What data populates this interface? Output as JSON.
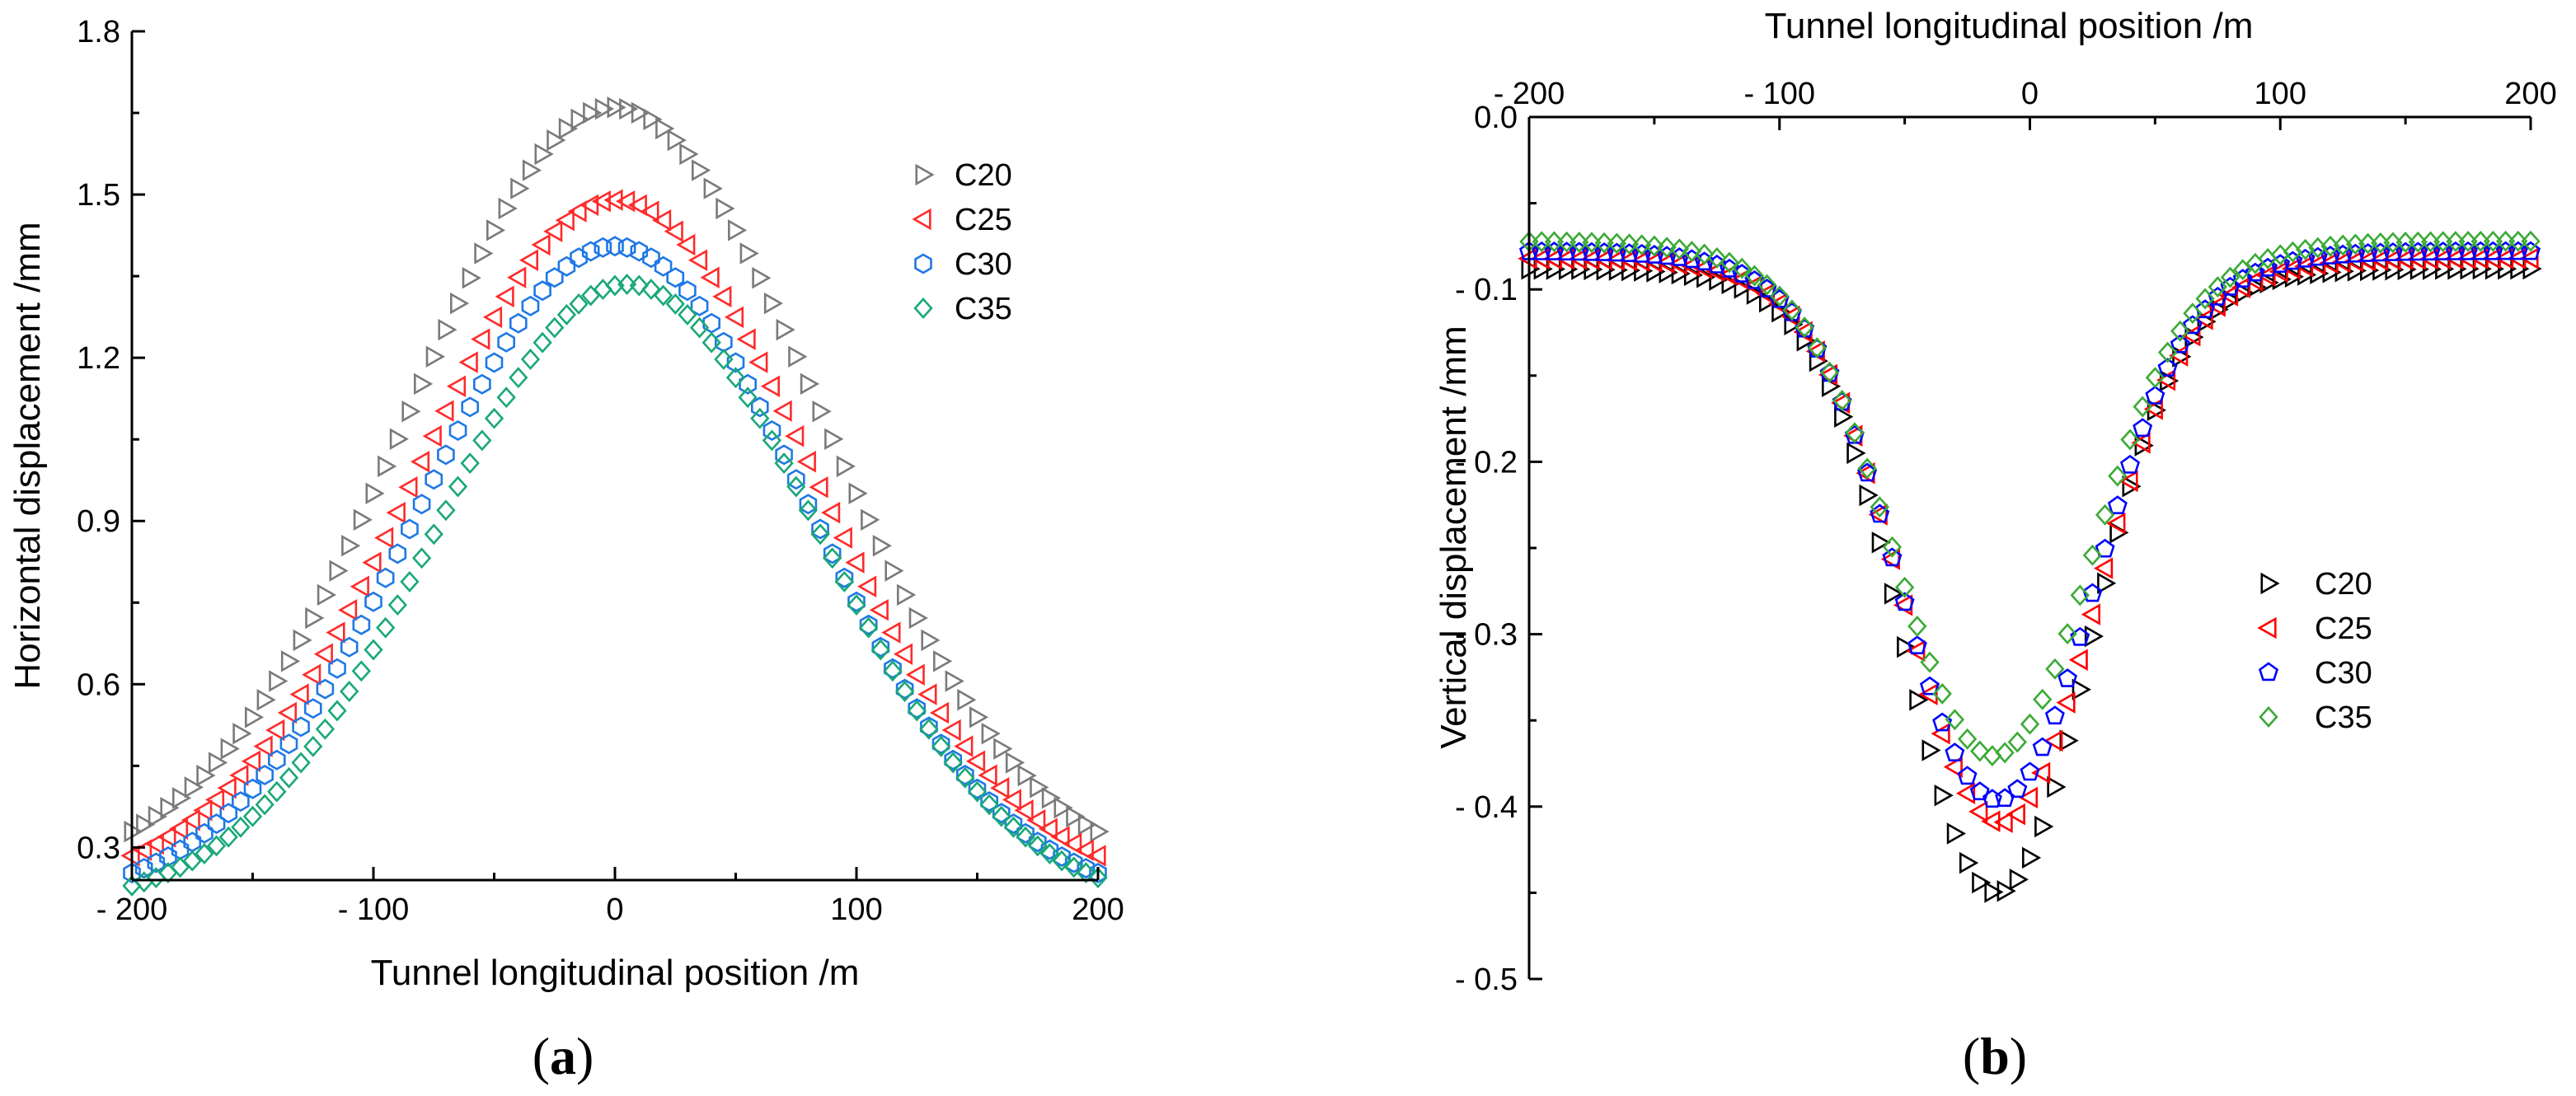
{
  "chart_data": [
    {
      "type": "scatter",
      "panel_label": "(a)",
      "panel_label_parts": [
        "(",
        "a",
        ")"
      ],
      "xlabel": "Tunnel longitudinal position /m",
      "ylabel": "Horizontal  displacement /mm",
      "xlim": [
        -200,
        200
      ],
      "ylim": [
        0.24,
        1.8
      ],
      "xticks": [
        -200,
        -100,
        0,
        100,
        200
      ],
      "xtick_labels": [
        "- 200",
        "- 100",
        "0",
        "100",
        "200"
      ],
      "yticks": [
        0.3,
        0.6,
        0.9,
        1.2,
        1.5,
        1.8
      ],
      "ytick_labels": [
        "0.3",
        "0.6",
        "0.9",
        "1.2",
        "1.5",
        "1.8"
      ],
      "grid": false,
      "legend_position": "top-right",
      "series": [
        {
          "name": "C20",
          "marker": "triangle-right",
          "color": "#7a7a7a",
          "peak_x": 0,
          "peak": 1.66,
          "base": 0.24,
          "sigma": 85,
          "x_start": -200,
          "x_end": 200,
          "step": 5
        },
        {
          "name": "C25",
          "marker": "triangle-left",
          "color": "#ff2a2a",
          "peak_x": 0,
          "peak": 1.49,
          "base": 0.22,
          "sigma": 82,
          "x_start": -200,
          "x_end": 200,
          "step": 5
        },
        {
          "name": "C30",
          "marker": "hexagon",
          "color": "#1e78e6",
          "peak_x": 0,
          "peak": 1.405,
          "base": 0.2,
          "sigma": 80,
          "x_start": -200,
          "x_end": 200,
          "step": 5
        },
        {
          "name": "C35",
          "marker": "diamond",
          "color": "#19a878",
          "peak_x": 5,
          "peak": 1.335,
          "base": 0.19,
          "sigma": 79,
          "x_start": -200,
          "x_end": 200,
          "step": 5
        }
      ]
    },
    {
      "type": "scatter",
      "panel_label": "(b)",
      "panel_label_parts": [
        "(",
        "b",
        ")"
      ],
      "xlabel": "Tunnel longitudinal position /m",
      "ylabel": "Vertical displacement /mm",
      "xlim": [
        -200,
        200
      ],
      "ylim": [
        -0.5,
        0.0
      ],
      "x_axis_position": "top",
      "xticks": [
        -200,
        -100,
        0,
        100,
        200
      ],
      "xtick_labels": [
        "- 200",
        "- 100",
        "0",
        "100",
        "200"
      ],
      "yticks": [
        0.0,
        -0.1,
        -0.2,
        -0.3,
        -0.4,
        -0.5
      ],
      "ytick_labels": [
        "0.0",
        "- 0.1",
        "- 0.2",
        "- 0.3",
        "- 0.4",
        "- 0.5"
      ],
      "grid": false,
      "legend_position": "center-right",
      "series": [
        {
          "name": "C20",
          "marker": "triangle-right",
          "color": "#000000",
          "plateau": -0.088,
          "trough": -0.457,
          "left_edge": -48,
          "right_edge": 22,
          "width": 18,
          "x_start": -200,
          "x_end": 200,
          "step": 5
        },
        {
          "name": "C25",
          "marker": "triangle-left",
          "color": "#ff0000",
          "plateau": -0.082,
          "trough": -0.42,
          "left_edge": -48,
          "right_edge": 24,
          "width": 19,
          "x_start": -200,
          "x_end": 200,
          "step": 5
        },
        {
          "name": "C30",
          "marker": "pentagon",
          "color": "#0000ff",
          "plateau": -0.078,
          "trough": -0.402,
          "left_edge": -50,
          "right_edge": 24,
          "width": 19,
          "x_start": -200,
          "x_end": 200,
          "step": 5
        },
        {
          "name": "C35",
          "marker": "diamond",
          "color": "#3aaa35",
          "plateau": -0.072,
          "trough": -0.386,
          "left_edge": -51,
          "right_edge": 22,
          "width": 20,
          "x_start": -200,
          "x_end": 200,
          "step": 5
        }
      ]
    }
  ]
}
